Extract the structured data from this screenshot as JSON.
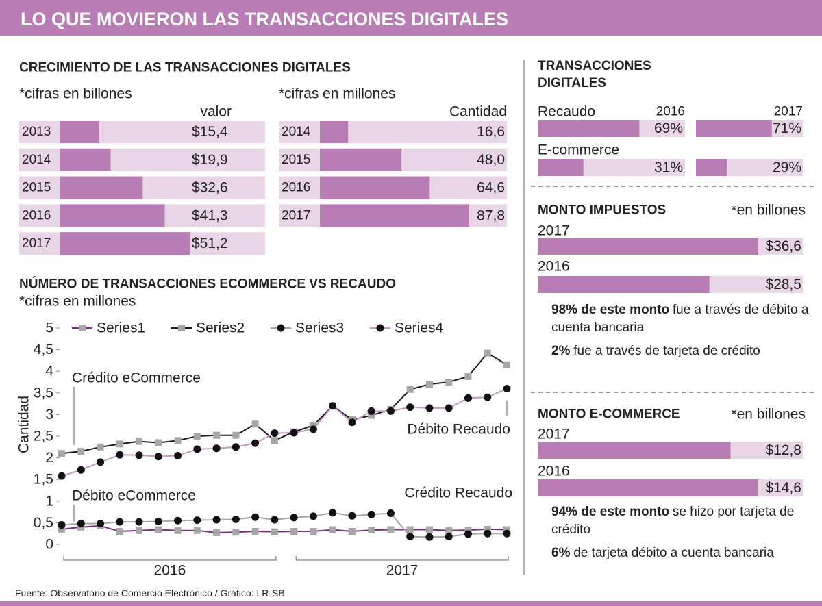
{
  "header": {
    "title": "LO QUE MOVIERON LAS TRANSACCIONES DIGITALES"
  },
  "chart_data": [
    {
      "type": "bar",
      "title": "CRECIMIENTO DE LAS TRANSACCIONES DIGITALES",
      "subtitle": "*cifras en billones",
      "value_header": "valor",
      "categories": [
        "2013",
        "2014",
        "2015",
        "2016",
        "2017"
      ],
      "values": [
        15.4,
        19.9,
        32.6,
        41.3,
        51.2
      ],
      "value_labels": [
        "$15,4",
        "$19,9",
        "$32,6",
        "$41,3",
        "$51,2"
      ],
      "color": "#b97db6",
      "track_color": "#e8d5e6",
      "xlim": [
        0,
        81
      ]
    },
    {
      "type": "bar",
      "subtitle": "*cifras en millones",
      "value_header": "Cantidad",
      "categories": [
        "2014",
        "2015",
        "2016",
        "2017"
      ],
      "values": [
        16.6,
        48.0,
        64.6,
        87.8
      ],
      "value_labels": [
        "16,6",
        "48,0",
        "64,6",
        "87,8"
      ],
      "color": "#b97db6",
      "track_color": "#e8d5e6",
      "xlim": [
        0,
        110
      ]
    },
    {
      "type": "line",
      "title": "NÚMERO DE TRANSACCIONES ECOMMERCE VS RECAUDO",
      "subtitle": "*cifras en millones",
      "y_label": "Cantidad",
      "categories": [
        null,
        null,
        null,
        null,
        null,
        null,
        null,
        null,
        null,
        null,
        null,
        null,
        null,
        null,
        null,
        null,
        null,
        null,
        null,
        null,
        null,
        null,
        null,
        null
      ],
      "x_groups": [
        "2016",
        "2017"
      ],
      "ylim": [
        0,
        5
      ],
      "yticks": [
        0,
        {
          "value": 0.5,
          "label": "0,5"
        },
        1,
        {
          "value": 1.5,
          "label": "1,5"
        },
        2,
        {
          "value": 2.5,
          "label": "2,5"
        },
        3,
        {
          "value": 3.5,
          "label": "3,5"
        },
        4,
        {
          "value": 4.5,
          "label": "4,5"
        },
        5
      ],
      "legend": "top",
      "series": [
        {
          "name": "Series1",
          "color": "#7d2b80",
          "marker": "square",
          "marker_color": "#a6a6a6",
          "values": [
            0.35,
            0.4,
            0.43,
            0.3,
            0.32,
            0.34,
            0.32,
            0.32,
            0.27,
            0.28,
            0.3,
            0.29,
            0.3,
            0.3,
            0.34,
            0.3,
            0.33,
            0.34,
            0.34,
            0.34,
            0.32,
            0.33,
            0.35,
            0.34
          ]
        },
        {
          "name": "Series2",
          "color": "#1a1a1a",
          "marker": "square",
          "marker_color": "#a6a6a6",
          "values": [
            2.1,
            2.15,
            2.25,
            2.32,
            2.38,
            2.35,
            2.4,
            2.5,
            2.52,
            2.52,
            2.78,
            2.4,
            2.6,
            2.75,
            3.2,
            2.88,
            2.98,
            3.12,
            3.58,
            3.7,
            3.75,
            3.88,
            4.42,
            4.15
          ]
        },
        {
          "name": "Series3",
          "color": "#a6a6a6",
          "marker": "circle",
          "marker_color": "#111111",
          "values": [
            0.45,
            0.48,
            0.48,
            0.52,
            0.52,
            0.53,
            0.55,
            0.56,
            0.57,
            0.58,
            0.63,
            0.57,
            0.62,
            0.65,
            0.73,
            0.66,
            0.69,
            0.72,
            0.18,
            0.17,
            0.18,
            0.24,
            0.25,
            0.25
          ]
        },
        {
          "name": "Series4",
          "color": "#c895c6",
          "marker": "circle",
          "marker_color": "#111111",
          "values": [
            1.58,
            1.72,
            1.9,
            2.07,
            2.06,
            2.03,
            2.05,
            2.2,
            2.22,
            2.25,
            2.34,
            2.57,
            2.58,
            2.66,
            3.2,
            2.82,
            3.08,
            3.08,
            3.17,
            3.15,
            3.15,
            3.38,
            3.4,
            3.6
          ]
        }
      ],
      "annotations": [
        "Crédito eCommerce",
        "Débito Recaudo",
        "Débito eCommerce",
        "Crédito Recaudo"
      ]
    },
    {
      "type": "bar",
      "title": "TRANSACCIONES DIGITALES",
      "categories": [
        "Recaudo",
        "E-commerce"
      ],
      "series": [
        {
          "name": "2016",
          "values": [
            69,
            31
          ],
          "value_labels": [
            "69%",
            "31%"
          ]
        },
        {
          "name": "2017",
          "values": [
            71,
            29
          ],
          "value_labels": [
            "71%",
            "29%"
          ]
        }
      ],
      "color": "#b97db6",
      "track_color": "#e8d5e6",
      "xlim": [
        0,
        100
      ]
    },
    {
      "type": "bar",
      "title": "MONTO IMPUESTOS",
      "subtitle": "*en billones",
      "categories": [
        "2017",
        "2016"
      ],
      "values": [
        36.6,
        28.5
      ],
      "value_labels": [
        "$36,6",
        "$28,5"
      ],
      "color": "#b97db6",
      "track_color": "#e8d5e6",
      "xlim": [
        0,
        44
      ],
      "notes": [
        {
          "bold": "98% de este monto",
          "text": "fue a través de débito a cuenta bancaria"
        },
        {
          "bold": "2%",
          "text": "fue a través de tarjeta de crédito"
        }
      ]
    },
    {
      "type": "bar",
      "title": "MONTO E-COMMERCE",
      "subtitle": "*en billones",
      "categories": [
        "2017",
        "2016"
      ],
      "values": [
        12.8,
        14.6
      ],
      "value_labels": [
        "$12,8",
        "$14,6"
      ],
      "color": "#b97db6",
      "track_color": "#e8d5e6",
      "xlim": [
        0,
        17.6
      ],
      "notes": [
        {
          "bold": "94% de este monto",
          "text": "se hizo por tarjeta de crédito"
        },
        {
          "bold": "6%",
          "text": "de tarjeta débito a cuenta bancaria"
        }
      ]
    }
  ],
  "source": "Fuente: Observatorio de Comercio Electrónico  / Gráfico: LR-SB"
}
